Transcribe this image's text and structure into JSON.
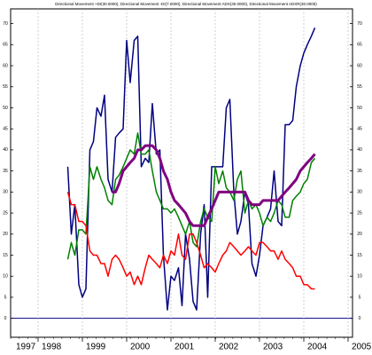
{
  "chart_data": {
    "type": "line",
    "title": "Directional Movement +DI(30.0000), Directional Movement -DI(7.0000), Directional Movement ADX(30.0000), Directional Movement ADXR(30.0000)",
    "x": [
      1998.67,
      1998.75,
      1998.83,
      1998.92,
      1999.0,
      1999.08,
      1999.17,
      1999.25,
      1999.33,
      1999.42,
      1999.5,
      1999.58,
      1999.67,
      1999.75,
      1999.83,
      1999.92,
      2000.0,
      2000.08,
      2000.17,
      2000.25,
      2000.33,
      2000.42,
      2000.5,
      2000.58,
      2000.67,
      2000.75,
      2000.83,
      2000.92,
      2001.0,
      2001.08,
      2001.17,
      2001.25,
      2001.33,
      2001.42,
      2001.5,
      2001.58,
      2001.67,
      2001.75,
      2001.83,
      2001.92,
      2002.0,
      2002.08,
      2002.17,
      2002.25,
      2002.33,
      2002.42,
      2002.5,
      2002.58,
      2002.67,
      2002.75,
      2002.83,
      2002.92,
      2003.0,
      2003.08,
      2003.17,
      2003.25,
      2003.33,
      2003.42,
      2003.5,
      2003.58,
      2003.67,
      2003.75,
      2003.83,
      2003.92,
      2004.0,
      2004.08,
      2004.17,
      2004.25
    ],
    "series": [
      {
        "name": "+DI",
        "color": "#000080",
        "width": 1.5,
        "values": [
          36,
          20,
          27,
          8,
          5,
          7,
          40,
          42,
          50,
          48,
          53,
          33,
          30,
          43,
          44,
          45,
          66,
          56,
          66,
          67,
          36,
          38,
          37,
          51,
          39,
          40,
          15,
          2,
          10,
          9,
          12,
          3,
          20,
          14,
          4,
          2,
          20,
          27,
          5,
          36,
          36,
          36,
          36,
          50,
          52,
          30,
          20,
          23,
          30,
          27,
          13,
          10,
          15,
          22,
          24,
          26,
          35,
          23,
          22,
          46,
          46,
          47,
          55,
          60,
          63,
          65,
          67,
          69
        ]
      },
      {
        "name": "-DI",
        "color": "#008000",
        "width": 1.5,
        "values": [
          14,
          18,
          15,
          21,
          21,
          20,
          36,
          33,
          36,
          33,
          31,
          28,
          27,
          33,
          34,
          36,
          38,
          40,
          39,
          44,
          39,
          39,
          40,
          35,
          30,
          28,
          26,
          26,
          25,
          26,
          24,
          22,
          20,
          23,
          18,
          17,
          23,
          26,
          24,
          23,
          36,
          32,
          35,
          31,
          30,
          28,
          33,
          35,
          25,
          28,
          26,
          27,
          25,
          22,
          24,
          23,
          25,
          28,
          27,
          24,
          24,
          28,
          29,
          30,
          32,
          33,
          37,
          38
        ]
      },
      {
        "name": "ADX",
        "color": "#ff0000",
        "width": 1.5,
        "values": [
          30,
          27,
          27,
          23,
          23,
          22,
          16,
          15,
          15,
          13,
          13,
          10,
          14,
          15,
          14,
          12,
          10,
          11,
          8,
          10,
          8,
          12,
          15,
          14,
          13,
          12,
          15,
          13,
          16,
          15,
          20,
          15,
          14,
          20,
          20,
          18,
          15,
          12,
          13,
          12,
          11,
          13,
          15,
          16,
          18,
          17,
          16,
          15,
          16,
          17,
          16,
          15,
          18,
          18,
          17,
          16,
          16,
          14,
          16,
          14,
          13,
          12,
          10,
          10,
          8,
          8,
          7,
          7
        ]
      },
      {
        "name": "ADXR",
        "color": "#800080",
        "width": 3,
        "values": [
          null,
          null,
          null,
          null,
          null,
          null,
          null,
          null,
          null,
          null,
          null,
          null,
          30,
          30,
          32,
          35,
          36,
          37,
          38,
          40,
          40,
          41,
          41,
          41,
          40,
          38,
          35,
          33,
          30,
          28,
          27,
          26,
          25,
          23,
          22,
          22,
          22,
          22,
          24,
          26,
          28,
          30,
          30,
          30,
          30,
          30,
          30,
          30,
          30,
          28,
          27,
          27,
          27,
          28,
          28,
          28,
          28,
          28,
          29,
          30,
          31,
          32,
          33,
          35,
          36,
          37,
          38,
          39
        ]
      }
    ],
    "xlim": [
      1997.38,
      2005.1
    ],
    "xticks": [
      1997,
      1998,
      1999,
      2000,
      2001,
      2002,
      2003,
      2004,
      2005
    ],
    "ylim": [
      -4.5,
      73.5
    ],
    "yticks": [
      0,
      5,
      10,
      15,
      20,
      25,
      30,
      35,
      40,
      45,
      50,
      55,
      60,
      65,
      70
    ],
    "grid": true
  }
}
